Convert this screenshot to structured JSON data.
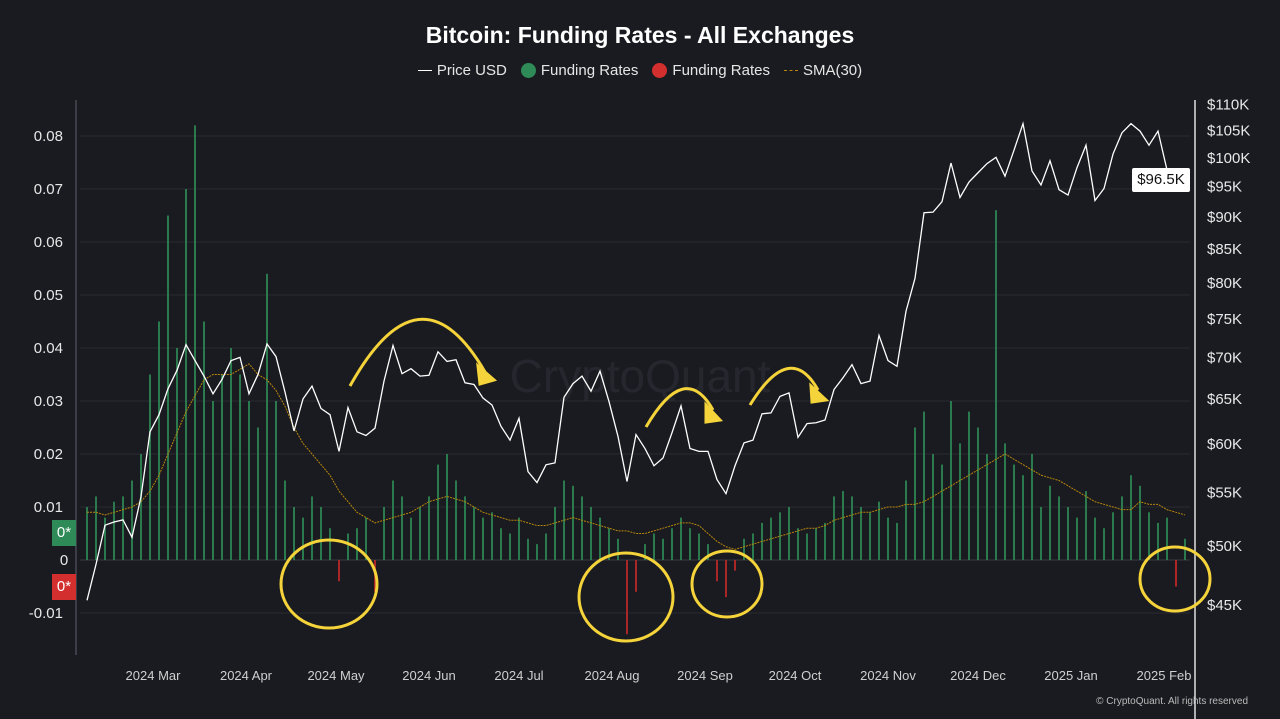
{
  "title": "Bitcoin: Funding Rates - All Exchanges",
  "legend": [
    {
      "label": "Price USD",
      "color": "#ffffff"
    },
    {
      "label": "Funding Rates",
      "color": "#2e8b57"
    },
    {
      "label": "Funding Rates",
      "color": "#d32f2f"
    },
    {
      "label": "SMA(30)",
      "color": "#b8860b"
    }
  ],
  "watermark": "CryptoQuant",
  "copyright": "© CryptoQuant. All rights reserved",
  "current_price_label": "$96.5K",
  "zero_markers": {
    "positive": "0*",
    "negative": "0*"
  },
  "chart_data": {
    "type": "bar+line",
    "title": "Bitcoin: Funding Rates - All Exchanges",
    "left_axis": {
      "ticks": [
        "0.08",
        "0.07",
        "0.06",
        "0.05",
        "0.04",
        "0.03",
        "0.02",
        "0.01",
        "0",
        "-0.01"
      ],
      "tick_values": [
        0.08,
        0.07,
        0.06,
        0.05,
        0.04,
        0.03,
        0.02,
        0.01,
        0,
        -0.01
      ],
      "range": [
        -0.017,
        0.09
      ]
    },
    "right_axis": {
      "scale": "log",
      "ticks": [
        "$110K",
        "$105K",
        "$100K",
        "$95K",
        "$90K",
        "$85K",
        "$80K",
        "$75K",
        "$70K",
        "$65K",
        "$60K",
        "$55K",
        "$50K",
        "$45K"
      ],
      "tick_values": [
        110,
        105,
        100,
        95,
        90,
        85,
        80,
        75,
        70,
        65,
        60,
        55,
        50,
        45
      ],
      "unit": "USD thousands"
    },
    "x_axis": {
      "ticks": [
        "2024 Mar",
        "2024 Apr",
        "2024 May",
        "2024 Jun",
        "2024 Jul",
        "2024 Aug",
        "2024 Sep",
        "2024 Oct",
        "2024 Nov",
        "2024 Dec",
        "2025 Jan",
        "2025 Feb"
      ],
      "tick_dates": [
        "2024-03-01",
        "2024-04-01",
        "2024-05-01",
        "2024-06-01",
        "2024-07-01",
        "2024-08-01",
        "2024-09-01",
        "2024-10-01",
        "2024-11-01",
        "2024-12-01",
        "2025-01-01",
        "2025-02-01"
      ],
      "range": [
        "2024-02-08",
        "2025-02-08"
      ]
    },
    "grid": true,
    "legend_position": "top",
    "dates": [
      "2024-02-08",
      "2024-02-11",
      "2024-02-14",
      "2024-02-17",
      "2024-02-20",
      "2024-02-23",
      "2024-02-26",
      "2024-02-29",
      "2024-03-03",
      "2024-03-06",
      "2024-03-09",
      "2024-03-12",
      "2024-03-15",
      "2024-03-18",
      "2024-03-21",
      "2024-03-24",
      "2024-03-27",
      "2024-03-30",
      "2024-04-02",
      "2024-04-05",
      "2024-04-08",
      "2024-04-11",
      "2024-04-14",
      "2024-04-17",
      "2024-04-20",
      "2024-04-23",
      "2024-04-26",
      "2024-04-29",
      "2024-05-02",
      "2024-05-05",
      "2024-05-08",
      "2024-05-11",
      "2024-05-14",
      "2024-05-17",
      "2024-05-20",
      "2024-05-23",
      "2024-05-26",
      "2024-05-29",
      "2024-06-01",
      "2024-06-04",
      "2024-06-07",
      "2024-06-10",
      "2024-06-13",
      "2024-06-16",
      "2024-06-19",
      "2024-06-22",
      "2024-06-25",
      "2024-06-28",
      "2024-07-01",
      "2024-07-04",
      "2024-07-07",
      "2024-07-10",
      "2024-07-13",
      "2024-07-16",
      "2024-07-19",
      "2024-07-22",
      "2024-07-25",
      "2024-07-28",
      "2024-07-31",
      "2024-08-03",
      "2024-08-06",
      "2024-08-09",
      "2024-08-12",
      "2024-08-15",
      "2024-08-18",
      "2024-08-21",
      "2024-08-24",
      "2024-08-27",
      "2024-08-30",
      "2024-09-02",
      "2024-09-05",
      "2024-09-08",
      "2024-09-11",
      "2024-09-14",
      "2024-09-17",
      "2024-09-20",
      "2024-09-23",
      "2024-09-26",
      "2024-09-29",
      "2024-10-02",
      "2024-10-05",
      "2024-10-08",
      "2024-10-11",
      "2024-10-14",
      "2024-10-17",
      "2024-10-20",
      "2024-10-23",
      "2024-10-26",
      "2024-10-29",
      "2024-11-01",
      "2024-11-04",
      "2024-11-07",
      "2024-11-10",
      "2024-11-13",
      "2024-11-16",
      "2024-11-19",
      "2024-11-22",
      "2024-11-25",
      "2024-11-28",
      "2024-12-01",
      "2024-12-04",
      "2024-12-07",
      "2024-12-10",
      "2024-12-13",
      "2024-12-16",
      "2024-12-19",
      "2024-12-22",
      "2024-12-25",
      "2024-12-28",
      "2024-12-31",
      "2025-01-03",
      "2025-01-06",
      "2025-01-09",
      "2025-01-12",
      "2025-01-15",
      "2025-01-18",
      "2025-01-21",
      "2025-01-24",
      "2025-01-27",
      "2025-01-30",
      "2025-02-02",
      "2025-02-05",
      "2025-02-08"
    ],
    "series": [
      {
        "name": "Price USD",
        "axis": "right",
        "unit": "USD thousands",
        "color": "#ffffff",
        "values": [
          45.3,
          48.3,
          51.8,
          52.1,
          52.3,
          50.7,
          54.5,
          61.2,
          63.1,
          66.1,
          68.3,
          71.5,
          69.5,
          67.6,
          65.5,
          67.2,
          69.5,
          69.9,
          65.5,
          67.8,
          71.6,
          70.0,
          65.7,
          61.3,
          64.9,
          66.4,
          63.8,
          63.1,
          59.1,
          63.9,
          61.2,
          60.8,
          61.6,
          67.0,
          71.4,
          67.9,
          68.5,
          67.6,
          67.7,
          70.6,
          69.4,
          69.6,
          66.8,
          66.6,
          65.0,
          64.2,
          61.8,
          60.3,
          62.7,
          57.0,
          55.9,
          57.7,
          57.9,
          65.1,
          66.7,
          67.6,
          65.8,
          68.2,
          64.6,
          60.7,
          56.0,
          60.9,
          59.4,
          57.6,
          58.4,
          61.1,
          64.1,
          59.4,
          59.1,
          59.1,
          56.2,
          54.8,
          57.6,
          60.0,
          60.3,
          63.2,
          63.3,
          65.2,
          65.6,
          60.6,
          62.1,
          62.2,
          62.5,
          66.0,
          67.4,
          69.0,
          66.7,
          67.0,
          72.7,
          69.5,
          68.8,
          75.9,
          80.5,
          90.5,
          90.6,
          92.3,
          98.9,
          93.0,
          95.6,
          97.2,
          98.8,
          99.9,
          96.6,
          101.2,
          106.1,
          97.5,
          95.1,
          99.3,
          94.3,
          93.4,
          98.1,
          102.1,
          92.5,
          94.5,
          100.5,
          104.4,
          106.1,
          104.7,
          102.1,
          104.7,
          97.7,
          96.6,
          96.5
        ]
      },
      {
        "name": "Funding Rates",
        "axis": "left",
        "positive_color": "#2e8b57",
        "negative_color": "#c62828",
        "values": [
          0.01,
          0.012,
          0.008,
          0.011,
          0.012,
          0.015,
          0.02,
          0.035,
          0.045,
          0.065,
          0.04,
          0.07,
          0.082,
          0.045,
          0.03,
          0.035,
          0.04,
          0.035,
          0.03,
          0.025,
          0.054,
          0.03,
          0.015,
          0.01,
          0.008,
          0.012,
          0.01,
          0.006,
          -0.004,
          0.005,
          0.006,
          0.008,
          -0.006,
          0.01,
          0.015,
          0.012,
          0.008,
          0.01,
          0.012,
          0.018,
          0.02,
          0.015,
          0.012,
          0.01,
          0.008,
          0.009,
          0.006,
          0.005,
          0.008,
          0.004,
          0.003,
          0.005,
          0.01,
          0.015,
          0.014,
          0.012,
          0.01,
          0.008,
          0.006,
          0.004,
          -0.014,
          -0.006,
          0.003,
          0.005,
          0.004,
          0.006,
          0.008,
          0.006,
          0.005,
          0.003,
          -0.004,
          -0.007,
          -0.002,
          0.004,
          0.005,
          0.007,
          0.008,
          0.009,
          0.01,
          0.006,
          0.005,
          0.006,
          0.007,
          0.012,
          0.013,
          0.012,
          0.01,
          0.009,
          0.011,
          0.008,
          0.007,
          0.015,
          0.025,
          0.028,
          0.02,
          0.018,
          0.03,
          0.022,
          0.028,
          0.025,
          0.02,
          0.066,
          0.022,
          0.018,
          0.016,
          0.02,
          0.01,
          0.014,
          0.012,
          0.01,
          0.008,
          0.013,
          0.008,
          0.006,
          0.009,
          0.012,
          0.016,
          0.014,
          0.009,
          0.007,
          0.008,
          -0.005,
          0.004
        ]
      },
      {
        "name": "SMA(30)",
        "axis": "left",
        "color": "#b8860b",
        "values": [
          0.009,
          0.009,
          0.0085,
          0.009,
          0.0095,
          0.01,
          0.011,
          0.013,
          0.016,
          0.02,
          0.024,
          0.028,
          0.031,
          0.034,
          0.035,
          0.035,
          0.035,
          0.036,
          0.037,
          0.035,
          0.034,
          0.032,
          0.029,
          0.025,
          0.022,
          0.02,
          0.018,
          0.016,
          0.013,
          0.011,
          0.009,
          0.008,
          0.007,
          0.0075,
          0.008,
          0.0085,
          0.009,
          0.01,
          0.011,
          0.0115,
          0.012,
          0.0115,
          0.011,
          0.01,
          0.009,
          0.0085,
          0.008,
          0.0075,
          0.0075,
          0.007,
          0.0065,
          0.0065,
          0.007,
          0.0075,
          0.008,
          0.0075,
          0.007,
          0.0065,
          0.006,
          0.0055,
          0.0055,
          0.005,
          0.005,
          0.0055,
          0.006,
          0.0065,
          0.007,
          0.007,
          0.0065,
          0.005,
          0.0035,
          0.0025,
          0.002,
          0.0025,
          0.003,
          0.0035,
          0.004,
          0.0045,
          0.005,
          0.0055,
          0.006,
          0.006,
          0.0065,
          0.0075,
          0.008,
          0.0085,
          0.009,
          0.009,
          0.0095,
          0.01,
          0.01,
          0.0105,
          0.0105,
          0.011,
          0.012,
          0.013,
          0.014,
          0.015,
          0.016,
          0.017,
          0.018,
          0.019,
          0.02,
          0.019,
          0.018,
          0.017,
          0.016,
          0.0155,
          0.015,
          0.014,
          0.013,
          0.012,
          0.011,
          0.0105,
          0.01,
          0.0095,
          0.0095,
          0.011,
          0.0105,
          0.0105,
          0.0095,
          0.009,
          0.0085
        ]
      }
    ],
    "annotations": {
      "arrows": 3,
      "circles": 4,
      "color": "#f5d33a"
    }
  }
}
